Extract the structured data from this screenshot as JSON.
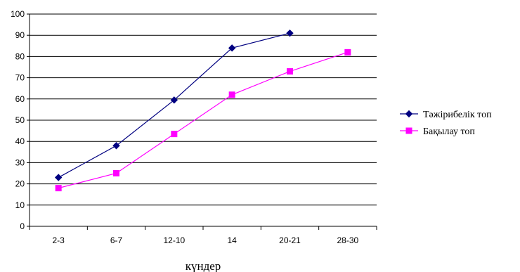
{
  "chart_data": {
    "type": "line",
    "categories": [
      "2-3",
      "6-7",
      "12-10",
      "14",
      "20-21",
      "28-30"
    ],
    "series": [
      {
        "name": "Тәжірибелік топ",
        "values": [
          23,
          38,
          59.5,
          84,
          91,
          null
        ],
        "color": "#000080",
        "marker": "diamond"
      },
      {
        "name": "Бақылау топ",
        "values": [
          18,
          25,
          43.5,
          62,
          73,
          82
        ],
        "color": "#ff00ff",
        "marker": "square"
      }
    ],
    "title": "",
    "xlabel": "күндер",
    "ylabel": "",
    "ylim": [
      0,
      100
    ],
    "yticks": [
      0,
      10,
      20,
      30,
      40,
      50,
      60,
      70,
      80,
      90,
      100
    ],
    "grid": "horizontal",
    "legend": "right"
  }
}
